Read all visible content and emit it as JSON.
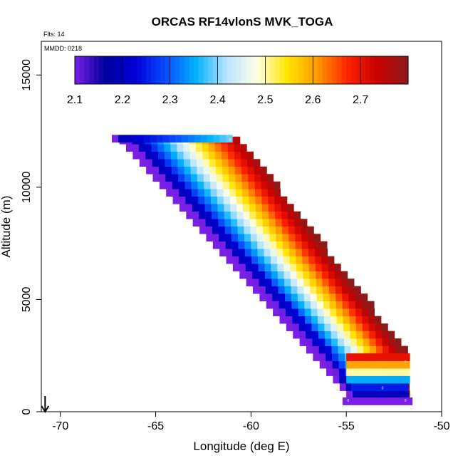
{
  "chart_data": {
    "type": "heatmap",
    "title": "ORCAS RF14vlonS MVK_TOGA",
    "flights_label": "Flts: 14",
    "date_label": "MMDD: 0218",
    "xlabel": "Longitude (deg E)",
    "ylabel": "Altitude (m)",
    "xlim": [
      -71,
      -50
    ],
    "ylim": [
      0,
      16500
    ],
    "xticks": [
      -70,
      -65,
      -60,
      -55,
      -50
    ],
    "yticks": [
      0,
      5000,
      10000,
      15000
    ],
    "colorbar": {
      "ticks": [
        2.1,
        2.2,
        2.3,
        2.4,
        2.5,
        2.6,
        2.7
      ],
      "range": [
        2.1,
        2.8
      ],
      "colors": [
        "#7a1fe6",
        "#00009e",
        "#0000d8",
        "#0a4dff",
        "#00b2ff",
        "#b8e4ff",
        "#ffffe8",
        "#ffe600",
        "#ff9900",
        "#ff2200",
        "#c80000",
        "#8c1a1a"
      ]
    },
    "grid": false,
    "cells": {
      "dx_deg": 0.333,
      "dz_m": 333,
      "bands": [
        {
          "lon_lo": -67.3,
          "lon_hi": -61.0,
          "alt_lo": 12000,
          "alt_hi": 12300
        },
        {
          "lon_lo": -55.2,
          "lon_hi": -51.8,
          "alt_lo": 300,
          "alt_hi": 600
        }
      ],
      "diagonal": {
        "lower_edge": [
          [
            -67.3,
            12300
          ],
          [
            -55.0,
            600
          ]
        ],
        "upper_edge": [
          [
            -61.0,
            12300
          ],
          [
            -51.8,
            2400
          ]
        ],
        "value_low": 2.1,
        "value_high": 2.78
      },
      "bottom_patch": {
        "lon_lo": -55.0,
        "lon_hi": -51.8,
        "alt_lo": 600,
        "alt_hi": 2400,
        "values": [
          2.2,
          2.25,
          2.35,
          2.5,
          2.6,
          2.7
        ]
      }
    },
    "annotations": [
      "0",
      "0",
      "0",
      "0",
      "0"
    ],
    "start_marker": {
      "lon": -70.8,
      "alt": 500
    }
  }
}
